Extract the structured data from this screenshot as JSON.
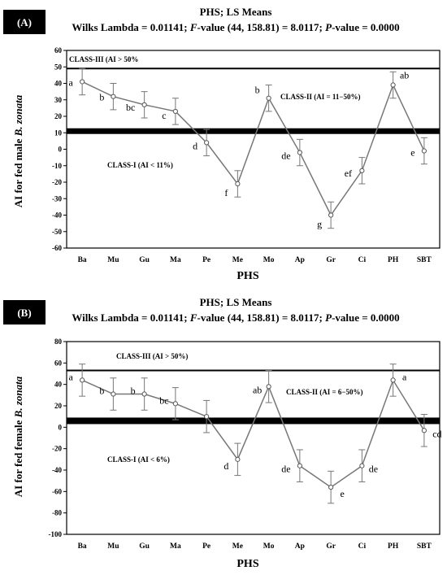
{
  "panels": [
    {
      "letter": "(A)",
      "title": "PHS; LS Means",
      "stats": {
        "prefix": "Wilks Lambda = 0.01141; ",
        "f_label": "F",
        "f_text": "-value (44, 158.81) = 8.0117; ",
        "p_label": "P",
        "p_text": "-value = 0.0000"
      },
      "ylabel_prefix": "AI for fed male ",
      "ylabel_species": "B. zonata",
      "xlabel": "PHS",
      "class_labels": {
        "class3": "CLASS-III (AI > 50%",
        "class2": "CLASS-II (AI = 11−50%)",
        "class1": "CLASS-I (AI < 11%)"
      },
      "chart_data": {
        "type": "line",
        "categories": [
          "Ba",
          "Mu",
          "Gu",
          "Ma",
          "Pe",
          "Me",
          "Mo",
          "Ap",
          "Gr",
          "Ci",
          "PH",
          "SBT"
        ],
        "values": [
          41,
          32,
          27,
          23,
          4,
          -21,
          31,
          -2,
          -40,
          -13,
          39,
          -1
        ],
        "error": [
          8,
          8,
          8,
          8,
          8,
          8,
          8,
          8,
          8,
          8,
          8,
          8
        ],
        "letters": [
          "a",
          "b",
          "bc",
          "c",
          "d",
          "f",
          "b",
          "de",
          "g",
          "ef",
          "ab",
          "e"
        ],
        "ylim": [
          -60,
          60
        ],
        "yticks": [
          60,
          50,
          40,
          30,
          20,
          10,
          0,
          -10,
          -20,
          -30,
          -40,
          -50,
          -60
        ],
        "thresholds": [
          49,
          11
        ]
      }
    },
    {
      "letter": "(B)",
      "title": "PHS; LS Means",
      "stats": {
        "prefix": "Wilks Lambda = 0.01141; ",
        "f_label": "F",
        "f_text": "-value (44, 158.81) = 8.0117; ",
        "p_label": "P",
        "p_text": "-value = 0.0000"
      },
      "ylabel_prefix": "AI for fed female ",
      "ylabel_species": "B. zonata",
      "xlabel": "PHS",
      "class_labels": {
        "class3": "CLASS-III (AI > 50%)",
        "class2": "CLASS-II (AI = 6−50%)",
        "class1": "CLASS-I (AI < 6%)"
      },
      "chart_data": {
        "type": "line",
        "categories": [
          "Ba",
          "Mu",
          "Gu",
          "Ma",
          "Pe",
          "Me",
          "Mo",
          "Ap",
          "Gr",
          "Ci",
          "PH",
          "SBT"
        ],
        "values": [
          44,
          31,
          31,
          22,
          10,
          -30,
          38,
          -36,
          -56,
          -36,
          44,
          -3
        ],
        "error": [
          15,
          15,
          15,
          15,
          15,
          15,
          15,
          15,
          15,
          15,
          15,
          15
        ],
        "letters": [
          "a",
          "b",
          "b",
          "bc",
          "",
          "d",
          "ab",
          "de",
          "e",
          "de",
          "a",
          "cd"
        ],
        "ylim": [
          -100,
          80
        ],
        "yticks": [
          80,
          60,
          40,
          20,
          0,
          -20,
          -40,
          -60,
          -80,
          -100
        ],
        "thresholds": [
          53,
          6
        ]
      }
    }
  ]
}
